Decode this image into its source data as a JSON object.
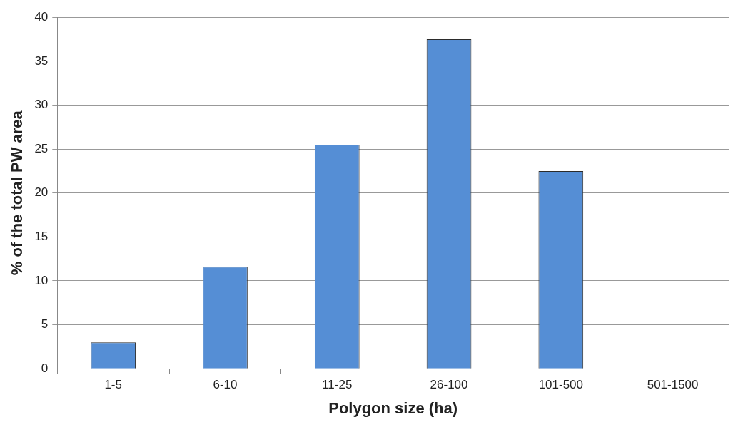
{
  "chart_data": {
    "type": "bar",
    "xlabel": "Polygon size (ha)",
    "ylabel": "% of the total PW area",
    "categories": [
      "1-5",
      "6-10",
      "11-25",
      "26-100",
      "101-500",
      "501-1500"
    ],
    "values": [
      3,
      11.6,
      25.5,
      37.5,
      22.5,
      0
    ],
    "color": "#558ed5",
    "ylim": [
      0,
      40
    ],
    "yticks": [
      0,
      5,
      10,
      15,
      20,
      25,
      30,
      35,
      40
    ],
    "grid": "y"
  }
}
